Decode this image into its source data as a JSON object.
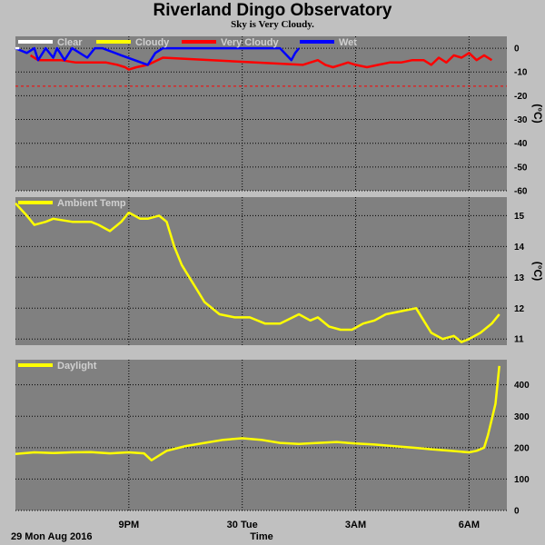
{
  "title": "Riverland Dingo Observatory",
  "subtitle": "Sky is Very Cloudy.",
  "x_axis": {
    "label": "Time",
    "date_label": "29 Mon Aug 2016",
    "ticks": [
      {
        "t": 3,
        "label": "9PM"
      },
      {
        "t": 6,
        "label": "30 Tue"
      },
      {
        "t": 9,
        "label": "3AM"
      },
      {
        "t": 12,
        "label": "6AM"
      }
    ],
    "range": [
      0,
      13
    ]
  },
  "colors": {
    "panel_bg": "#808080",
    "clear": "#ffffff",
    "cloudy": "#ffff00",
    "very_cloudy": "#ff0000",
    "wet": "#0000ff",
    "threshold": "#ff0000"
  },
  "chart_data": [
    {
      "type": "line",
      "y_unit": "(°C)",
      "ylim": [
        -60,
        5
      ],
      "yticks": [
        0,
        -10,
        -20,
        -30,
        -40,
        -50,
        -60
      ],
      "legend": [
        {
          "name": "Clear",
          "color": "#ffffff"
        },
        {
          "name": "Cloudy",
          "color": "#ffff00"
        },
        {
          "name": "Very Cloudy",
          "color": "#ff0000"
        },
        {
          "name": "Wet",
          "color": "#0000ff"
        }
      ],
      "threshold": -16,
      "series": [
        {
          "name": "Very Cloudy",
          "color": "#ff0000",
          "x": [
            0.4,
            0.6,
            0.8,
            1.2,
            1.6,
            2.0,
            2.4,
            2.7,
            2.9,
            3.0,
            3.2,
            3.5,
            3.9,
            7.6,
            7.8,
            8.0,
            8.2,
            8.4,
            8.6,
            8.8,
            9.0,
            9.3,
            9.6,
            9.9,
            10.2,
            10.5,
            10.8,
            11.0,
            11.2,
            11.4,
            11.6,
            11.8,
            12.0,
            12.2,
            12.4,
            12.6
          ],
          "values": [
            -3,
            -5,
            -5,
            -5,
            -6,
            -6,
            -6,
            -7,
            -8,
            -9,
            -8,
            -7,
            -4,
            -7,
            -6,
            -5,
            -7,
            -8,
            -7,
            -6,
            -7,
            -8,
            -7,
            -6,
            -6,
            -5,
            -5,
            -7,
            -4,
            -6,
            -3,
            -4,
            -2,
            -5,
            -3,
            -5
          ]
        },
        {
          "name": "Wet",
          "color": "#0000ff",
          "x": [
            0.0,
            0.3,
            0.5,
            0.6,
            0.8,
            1.0,
            1.1,
            1.3,
            1.5,
            1.9,
            2.1,
            2.3,
            2.8,
            3.5,
            3.7,
            3.9,
            4.2,
            4.5,
            5.0,
            5.5,
            6.0,
            6.5,
            6.8,
            7.0,
            7.3,
            7.4,
            7.5
          ],
          "values": [
            0,
            -2,
            0,
            -5,
            0,
            -4,
            0,
            -5,
            0,
            -4,
            0,
            0,
            -3,
            -7,
            -2,
            0,
            0,
            0,
            0,
            0,
            0,
            0,
            0,
            0,
            -5,
            -2,
            0
          ]
        },
        {
          "name": "Clear",
          "color": "#ffffff",
          "x": [
            0.0,
            0.1
          ],
          "values": [
            0,
            0
          ]
        }
      ]
    },
    {
      "type": "line",
      "y_unit": "(°C)",
      "ylim": [
        10.8,
        15.6
      ],
      "yticks": [
        11,
        12,
        13,
        14,
        15
      ],
      "legend": [
        {
          "name": "Ambient Temp",
          "color": "#ffff00"
        }
      ],
      "series": [
        {
          "name": "Ambient Temp",
          "color": "#ffff00",
          "x": [
            0.0,
            0.3,
            0.5,
            0.8,
            1.0,
            1.5,
            2.0,
            2.2,
            2.5,
            2.8,
            3.0,
            3.3,
            3.5,
            3.8,
            4.0,
            4.2,
            4.4,
            4.6,
            4.8,
            5.0,
            5.4,
            5.8,
            6.2,
            6.6,
            7.0,
            7.5,
            7.8,
            8.0,
            8.3,
            8.6,
            8.9,
            9.2,
            9.5,
            9.8,
            10.2,
            10.6,
            10.8,
            11.0,
            11.3,
            11.6,
            11.8,
            12.0,
            12.3,
            12.6,
            12.8
          ],
          "values": [
            15.4,
            15.0,
            14.7,
            14.8,
            14.9,
            14.8,
            14.8,
            14.7,
            14.5,
            14.8,
            15.1,
            14.9,
            14.9,
            15.0,
            14.8,
            14.0,
            13.4,
            13.0,
            12.6,
            12.2,
            11.8,
            11.7,
            11.7,
            11.5,
            11.5,
            11.8,
            11.6,
            11.7,
            11.4,
            11.3,
            11.3,
            11.5,
            11.6,
            11.8,
            11.9,
            12.0,
            11.6,
            11.2,
            11.0,
            11.1,
            10.9,
            11.0,
            11.2,
            11.5,
            11.8
          ]
        }
      ]
    },
    {
      "type": "line",
      "y_unit": "",
      "ylim": [
        0,
        480
      ],
      "yticks": [
        0,
        100,
        200,
        300,
        400
      ],
      "legend": [
        {
          "name": "Daylight",
          "color": "#ffff00"
        }
      ],
      "series": [
        {
          "name": "Daylight",
          "color": "#ffff00",
          "x": [
            0.0,
            0.5,
            1.0,
            1.5,
            2.0,
            2.5,
            3.0,
            3.4,
            3.6,
            3.8,
            4.0,
            4.5,
            5.0,
            5.5,
            6.0,
            6.5,
            7.0,
            7.5,
            8.0,
            8.5,
            9.0,
            9.5,
            10.0,
            10.5,
            11.0,
            11.5,
            12.0,
            12.2,
            12.4,
            12.5,
            12.6,
            12.7,
            12.8
          ],
          "values": [
            180,
            185,
            183,
            185,
            186,
            182,
            185,
            182,
            160,
            175,
            190,
            205,
            215,
            225,
            230,
            225,
            215,
            212,
            215,
            218,
            213,
            210,
            205,
            200,
            195,
            190,
            185,
            190,
            200,
            240,
            290,
            340,
            460
          ]
        }
      ]
    }
  ]
}
